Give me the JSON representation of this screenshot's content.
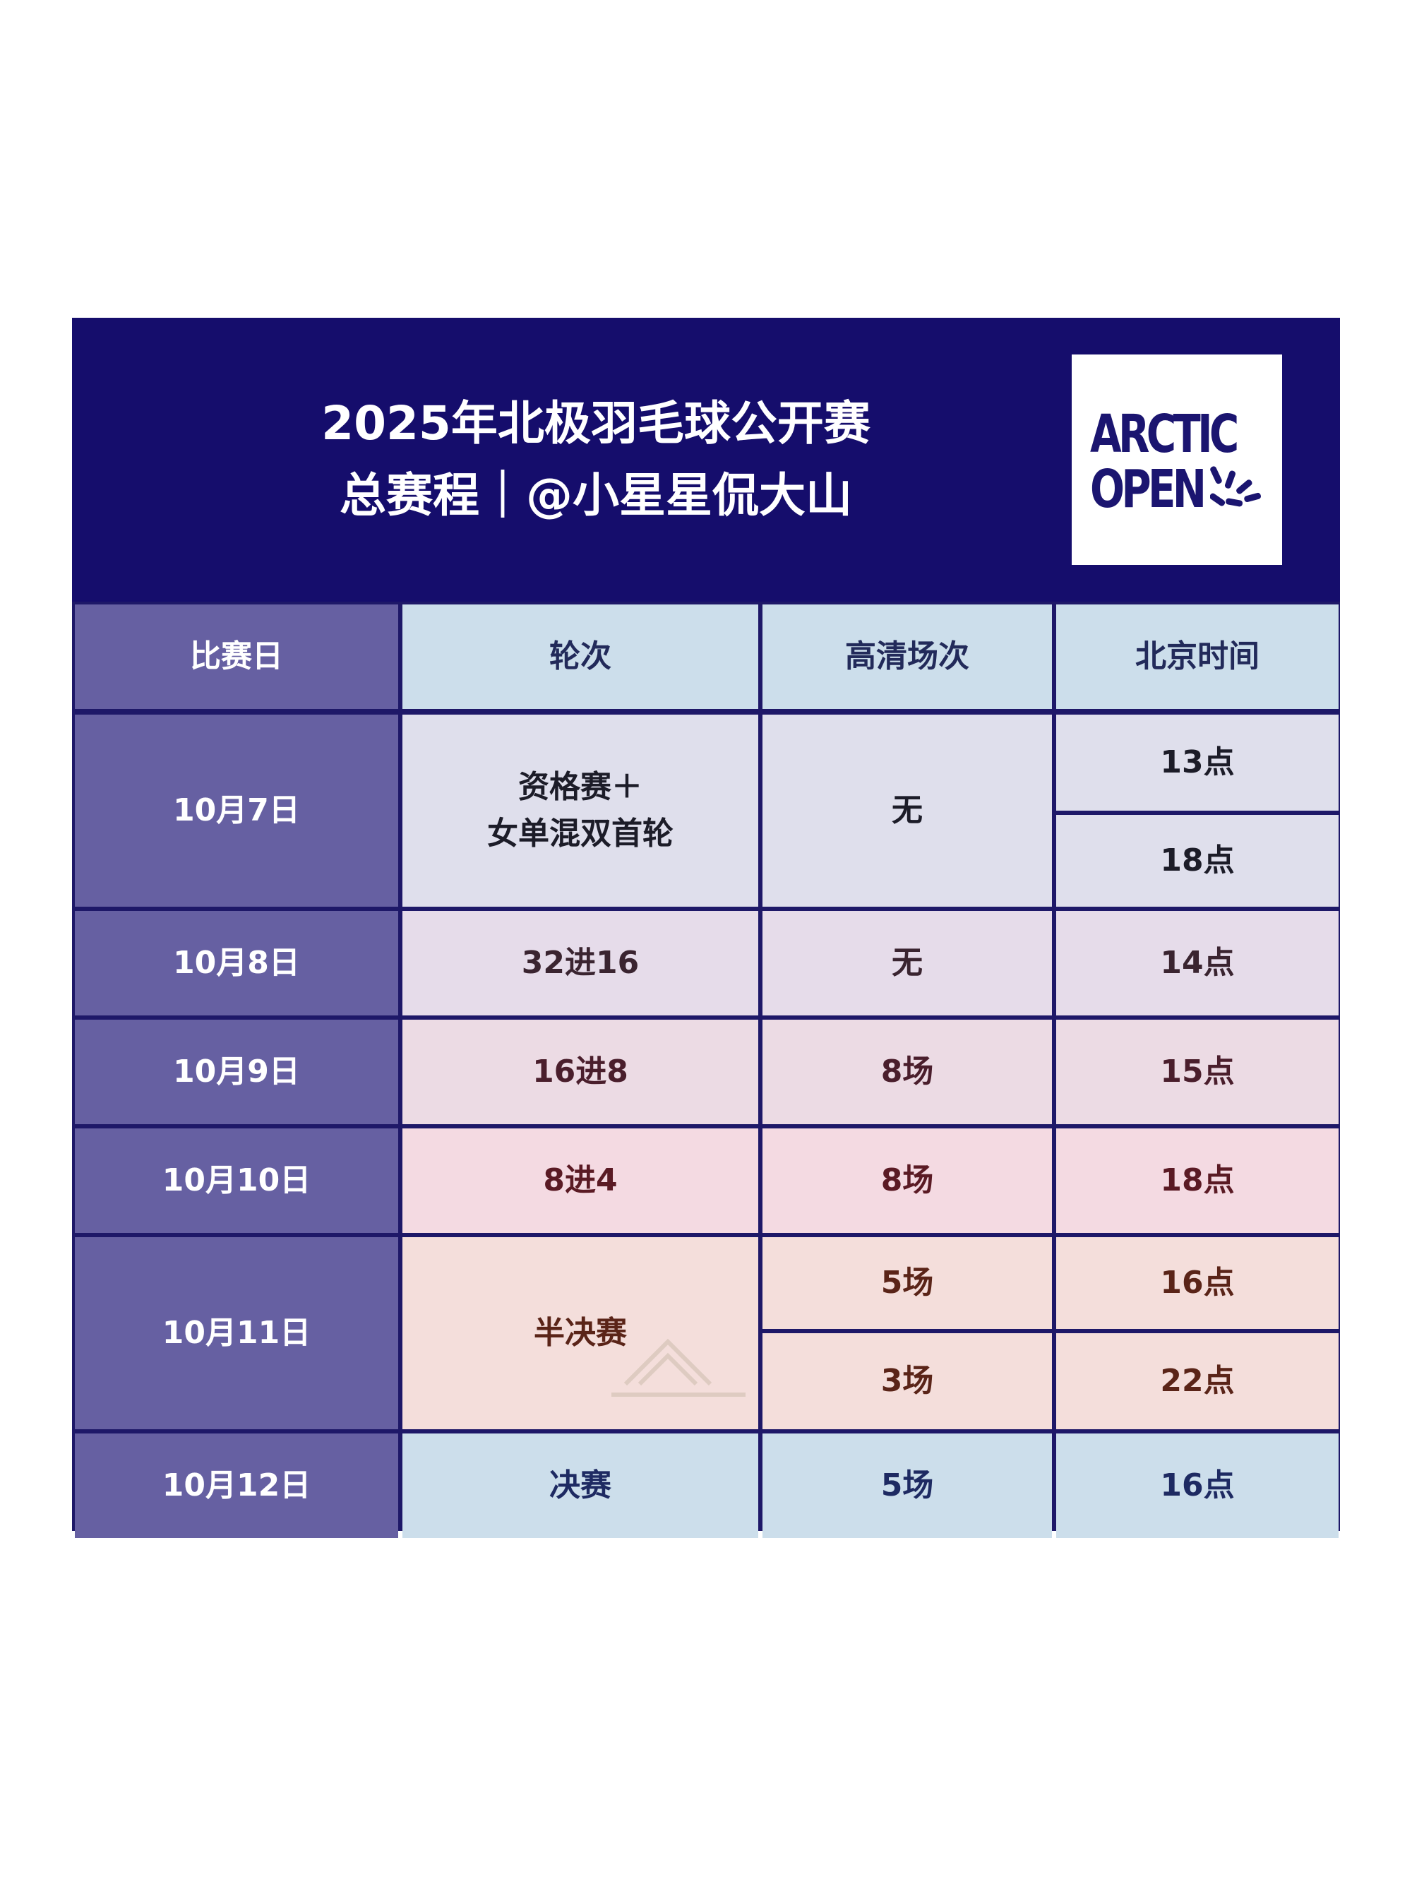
{
  "title": {
    "line1": "2025年北极羽毛球公开赛",
    "line2": "总赛程｜@小星星侃大山"
  },
  "logo": {
    "line1": "ARCTIC",
    "line2": "OPEN",
    "icon": "shuttle-burst-icon"
  },
  "columns": [
    "比赛日",
    "轮次",
    "高清场次",
    "北京时间"
  ],
  "rows": [
    {
      "date": "10月7日",
      "round_line1": "资格赛＋",
      "round_line2": "女单混双首轮",
      "hd": "无",
      "times": [
        "13点",
        "18点"
      ]
    },
    {
      "date": "10月8日",
      "round": "32进16",
      "hd": "无",
      "time": "14点"
    },
    {
      "date": "10月9日",
      "round": "16进8",
      "hd": "8场",
      "time": "15点"
    },
    {
      "date": "10月10日",
      "round": "8进4",
      "hd": "8场",
      "time": "18点"
    },
    {
      "date": "10月11日",
      "round": "半决赛",
      "hd_list": [
        "5场",
        "3场"
      ],
      "times": [
        "16点",
        "22点"
      ]
    },
    {
      "date": "10月12日",
      "round": "决赛",
      "hd": "5场",
      "time": "16点"
    }
  ],
  "colors": {
    "header_bg": "#150d6c",
    "grid_line": "#1e1868",
    "date_col": "#6660a2",
    "header_row": "#ccdeeb"
  }
}
